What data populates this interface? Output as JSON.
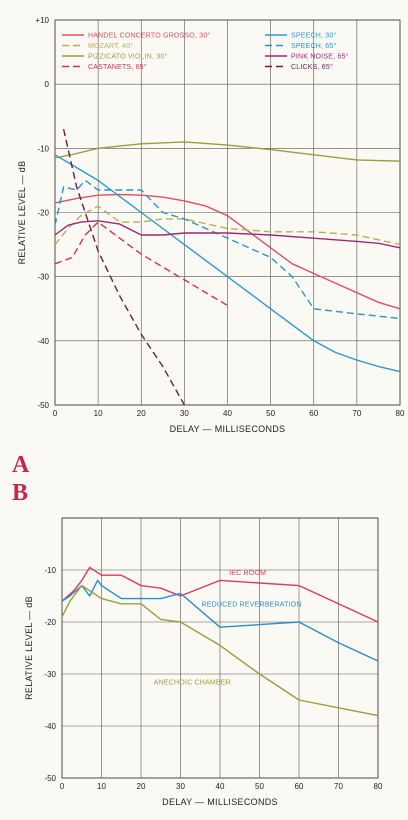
{
  "panel_labels": {
    "a": "A",
    "b": "B"
  },
  "chart_data": [
    {
      "type": "line",
      "xlabel": "DELAY — MILLISECONDS",
      "ylabel": "RELATIVE LEVEL — dB",
      "xlim": [
        0,
        80
      ],
      "ylim": [
        -50,
        10
      ],
      "xticks": [
        0,
        10,
        20,
        30,
        40,
        50,
        60,
        70,
        80
      ],
      "yticks": [
        10,
        0,
        -10,
        -20,
        -30,
        -40,
        -50
      ],
      "ytick_labels": [
        "+10",
        "0",
        "-10",
        "-20",
        "-30",
        "-40",
        "-50"
      ],
      "grid": true,
      "legend_position": "top",
      "series": [
        {
          "name": "HANDEL CONCERTO GROSSO, 30°",
          "color": "#e05060",
          "dash": "solid",
          "x": [
            0,
            5,
            10,
            15,
            20,
            25,
            30,
            35,
            40,
            45,
            50,
            55,
            60,
            65,
            70,
            75,
            80
          ],
          "y": [
            -18.5,
            -17.8,
            -17.3,
            -17.2,
            -17.3,
            -17.6,
            -18.2,
            -19,
            -20.5,
            -23,
            -25.5,
            -28,
            -29.5,
            -31,
            -32.5,
            -34,
            -35
          ]
        },
        {
          "name": "MOZART, 40°",
          "color": "#b8ae5a",
          "dash": "dashed",
          "x": [
            0,
            3,
            6,
            10,
            15,
            20,
            25,
            30,
            40,
            50,
            60,
            70,
            80
          ],
          "y": [
            -25,
            -22.5,
            -20.5,
            -19,
            -21.5,
            -21.5,
            -21,
            -21,
            -22.5,
            -23,
            -23,
            -23.5,
            -25
          ]
        },
        {
          "name": "PIZZICATO VIOLIN, 30°",
          "color": "#9a9e3c",
          "dash": "solid",
          "x": [
            0,
            5,
            10,
            20,
            30,
            40,
            50,
            60,
            70,
            80
          ],
          "y": [
            -11.5,
            -10.8,
            -10,
            -9.3,
            -9,
            -9.5,
            -10.2,
            -11,
            -11.8,
            -12
          ]
        },
        {
          "name": "CASTANETS, 65°",
          "color": "#d8304a",
          "dash": "dashed",
          "x": [
            0,
            4,
            7,
            10,
            15,
            20,
            30,
            40
          ],
          "y": [
            -28,
            -27,
            -23.5,
            -21.5,
            -24,
            -26.5,
            -30.5,
            -34.5
          ]
        },
        {
          "name": "SPEECH, 30°",
          "color": "#2a9ad0",
          "dash": "solid",
          "x": [
            0,
            5,
            10,
            15,
            20,
            25,
            30,
            35,
            40,
            45,
            50,
            55,
            60,
            65,
            70,
            75,
            80
          ],
          "y": [
            -11,
            -13,
            -15,
            -17.5,
            -20,
            -22.5,
            -25,
            -27.5,
            -30,
            -32.5,
            -35,
            -37.5,
            -40,
            -41.8,
            -43,
            -44,
            -44.8
          ]
        },
        {
          "name": "SPEECH, 65°",
          "color": "#3090c8",
          "dash": "dashed",
          "x": [
            0,
            2,
            5,
            7,
            10,
            15,
            20,
            25,
            30,
            40,
            50,
            55,
            60,
            70,
            80
          ],
          "y": [
            -22,
            -16,
            -16.5,
            -15,
            -16.5,
            -16.5,
            -16.5,
            -20,
            -21,
            -24,
            -27,
            -30,
            -35,
            -35.8,
            -36.5
          ]
        },
        {
          "name": "PINK NOISE, 65°",
          "color": "#a02870",
          "dash": "solid",
          "x": [
            0,
            3,
            6,
            10,
            15,
            20,
            25,
            30,
            40,
            50,
            60,
            70,
            75,
            80
          ],
          "y": [
            -23.5,
            -22,
            -21.5,
            -21.3,
            -21.8,
            -23.5,
            -23.5,
            -23.2,
            -23.2,
            -23.5,
            -24,
            -24.5,
            -24.8,
            -25.5
          ]
        },
        {
          "name": "CLICKS, 65°",
          "color": "#6a1e4a",
          "dash": "dashed",
          "x": [
            2,
            5,
            10,
            15,
            20,
            25,
            30
          ],
          "y": [
            -7,
            -16,
            -26,
            -33,
            -39,
            -44,
            -50
          ]
        }
      ]
    },
    {
      "type": "line",
      "xlabel": "DELAY — MILLISECONDS",
      "ylabel": "RELATIVE LEVEL — dB",
      "xlim": [
        0,
        80
      ],
      "ylim": [
        -50,
        0
      ],
      "xticks": [
        0,
        10,
        20,
        30,
        40,
        50,
        60,
        70,
        80
      ],
      "yticks": [
        -10,
        -20,
        -30,
        -40,
        -50
      ],
      "ytick_labels": [
        "-10",
        "-20",
        "-30",
        "-40",
        "-50"
      ],
      "grid": true,
      "series": [
        {
          "name": "IEC ROOM",
          "color": "#e03a56",
          "label_pos": [
            47,
            -11
          ],
          "x": [
            0,
            3,
            5,
            7,
            9,
            10,
            15,
            20,
            25,
            30,
            40,
            50,
            60,
            70,
            80
          ],
          "y": [
            -16,
            -14,
            -12,
            -9.5,
            -10.5,
            -11,
            -11,
            -13,
            -13.5,
            -15,
            -12,
            -12.5,
            -13,
            -16.5,
            -20
          ]
        },
        {
          "name": "REDUCED REVERBERATION",
          "color": "#2a8ec6",
          "label_pos": [
            48,
            -17
          ],
          "x": [
            0,
            2,
            5,
            7,
            9,
            10,
            15,
            20,
            25,
            30,
            40,
            50,
            60,
            70,
            80
          ],
          "y": [
            -16,
            -15,
            -13,
            -15,
            -12,
            -13,
            -15.5,
            -15.5,
            -15.5,
            -14.5,
            -21,
            -20.5,
            -20,
            -24,
            -27.5
          ]
        },
        {
          "name": "ANECHOIC CHAMBER",
          "color": "#9a9e3c",
          "label_pos": [
            33,
            -32
          ],
          "x": [
            0,
            2,
            5,
            7,
            10,
            15,
            20,
            25,
            30,
            40,
            50,
            60,
            70,
            80
          ],
          "y": [
            -19,
            -16,
            -13,
            -14,
            -15.5,
            -16.5,
            -16.5,
            -19.5,
            -20,
            -24.5,
            -30,
            -35,
            -36.5,
            -38
          ]
        }
      ]
    }
  ]
}
